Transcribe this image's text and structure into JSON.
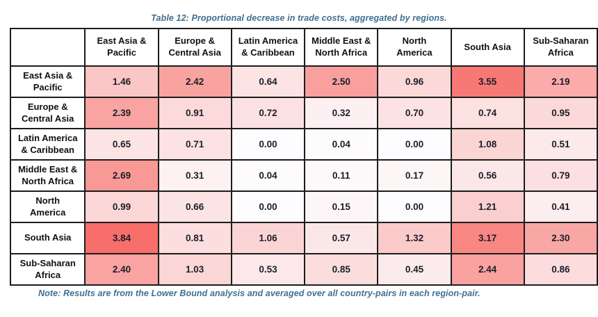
{
  "caption": "Table 12: Proportional decrease in trade costs, aggregated by regions.",
  "note": "Note: Results are from the Lower Bound analysis and averaged over all country-pairs in each region-pair.",
  "colors": {
    "caption_text": "#3F6F91",
    "note_text": "#3F6F91",
    "table_border": "#1C1C1C",
    "value_text": "#1B1E28",
    "heatmap_min": "#FDFCFE",
    "heatmap_max": "#F76E6A"
  },
  "table": {
    "corner_label": "",
    "col_headers": [
      "East Asia &\nPacific",
      "Europe &\nCentral Asia",
      "Latin America\n& Caribbean",
      "Middle East &\nNorth Africa",
      "North\nAmerica",
      "South Asia",
      "Sub-Saharan\nAfrica"
    ],
    "row_headers": [
      "East Asia &\nPacific",
      "Europe &\nCentral Asia",
      "Latin America\n& Caribbean",
      "Middle East &\nNorth Africa",
      "North\nAmerica",
      "South Asia",
      "Sub-Saharan\nAfrica"
    ]
  },
  "chart_data": {
    "type": "heatmap",
    "title": "Table 12: Proportional decrease in trade costs, aggregated by regions.",
    "note": "Note: Results are from the Lower Bound analysis and averaged over all country-pairs in each region-pair.",
    "columns": [
      "East Asia & Pacific",
      "Europe & Central Asia",
      "Latin America & Caribbean",
      "Middle East & North Africa",
      "North America",
      "South Asia",
      "Sub-Saharan Africa"
    ],
    "rows": [
      "East Asia & Pacific",
      "Europe & Central Asia",
      "Latin America & Caribbean",
      "Middle East & North Africa",
      "North America",
      "South Asia",
      "Sub-Saharan Africa"
    ],
    "values": [
      [
        1.46,
        2.42,
        0.64,
        2.5,
        0.96,
        3.55,
        2.19
      ],
      [
        2.39,
        0.91,
        0.72,
        0.32,
        0.7,
        0.74,
        0.95
      ],
      [
        0.65,
        0.71,
        0.0,
        0.04,
        0.0,
        1.08,
        0.51
      ],
      [
        2.69,
        0.31,
        0.04,
        0.11,
        0.17,
        0.56,
        0.79
      ],
      [
        0.99,
        0.66,
        0.0,
        0.15,
        0.0,
        1.21,
        0.41
      ],
      [
        3.84,
        0.81,
        1.06,
        0.57,
        1.32,
        3.17,
        2.3
      ],
      [
        2.4,
        1.03,
        0.53,
        0.85,
        0.45,
        2.44,
        0.86
      ]
    ],
    "value_format": "2-decimals",
    "color_scale": {
      "min_value": 0.0,
      "max_value": 3.84,
      "min_color": "#FDFCFE",
      "max_color": "#F76E6A"
    },
    "legend": "none",
    "grid": "black cell borders"
  }
}
